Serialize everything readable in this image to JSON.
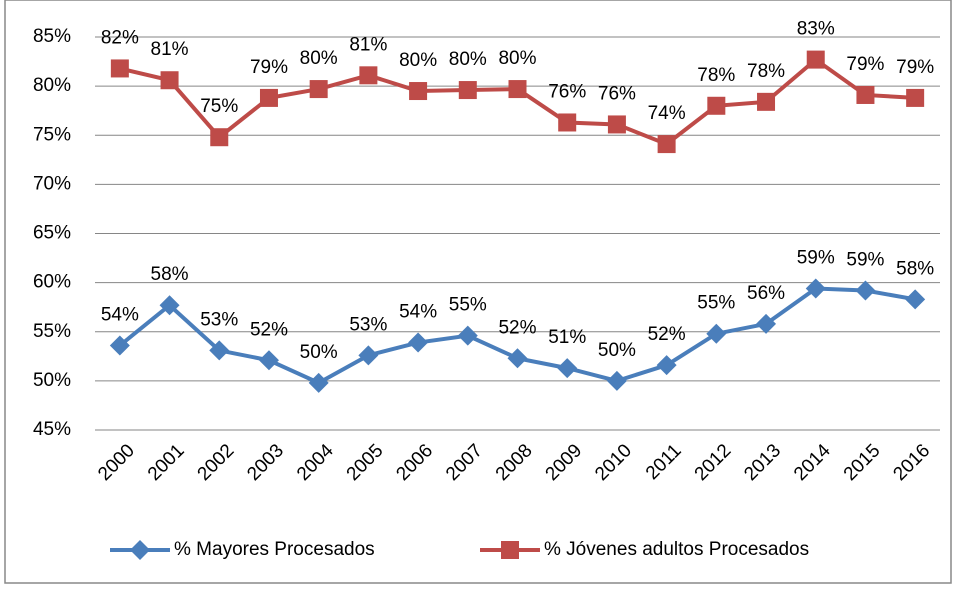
{
  "chart_data": {
    "type": "line",
    "categories": [
      "2000",
      "2001",
      "2002",
      "2003",
      "2004",
      "2005",
      "2006",
      "2007",
      "2008",
      "2009",
      "2010",
      "2011",
      "2012",
      "2013",
      "2014",
      "2015",
      "2016"
    ],
    "series": [
      {
        "name": "% Mayores Procesados",
        "color": "#4a7ebb",
        "marker": "diamond",
        "values": [
          53.6,
          57.7,
          53.1,
          52.1,
          49.8,
          52.6,
          53.9,
          54.6,
          52.3,
          51.3,
          50.0,
          51.6,
          54.8,
          55.8,
          59.4,
          59.2,
          58.3
        ],
        "value_labels": [
          "54%",
          "58%",
          "53%",
          "52%",
          "50%",
          "53%",
          "54%",
          "55%",
          "52%",
          "51%",
          "50%",
          "52%",
          "55%",
          "56%",
          "59%",
          "59%",
          "58%"
        ]
      },
      {
        "name": "% Jóvenes adultos Procesados",
        "color": "#be4b48",
        "marker": "square",
        "values": [
          81.8,
          80.6,
          74.8,
          78.8,
          79.7,
          81.1,
          79.5,
          79.6,
          79.7,
          76.3,
          76.1,
          74.1,
          78.0,
          78.4,
          82.7,
          79.1,
          78.8
        ],
        "value_labels": [
          "82%",
          "81%",
          "75%",
          "79%",
          "80%",
          "81%",
          "80%",
          "80%",
          "80%",
          "76%",
          "76%",
          "74%",
          "78%",
          "78%",
          "83%",
          "79%",
          "79%"
        ]
      }
    ],
    "ylim": [
      45,
      85
    ],
    "yticks": [
      {
        "value": 45,
        "label": "45%"
      },
      {
        "value": 50,
        "label": "50%"
      },
      {
        "value": 55,
        "label": "55%"
      },
      {
        "value": 60,
        "label": "60%"
      },
      {
        "value": 65,
        "label": "65%"
      },
      {
        "value": 70,
        "label": "70%"
      },
      {
        "value": 75,
        "label": "75%"
      },
      {
        "value": 80,
        "label": "80%"
      },
      {
        "value": 85,
        "label": "85%"
      }
    ],
    "grid": true,
    "legend": "bottom"
  }
}
